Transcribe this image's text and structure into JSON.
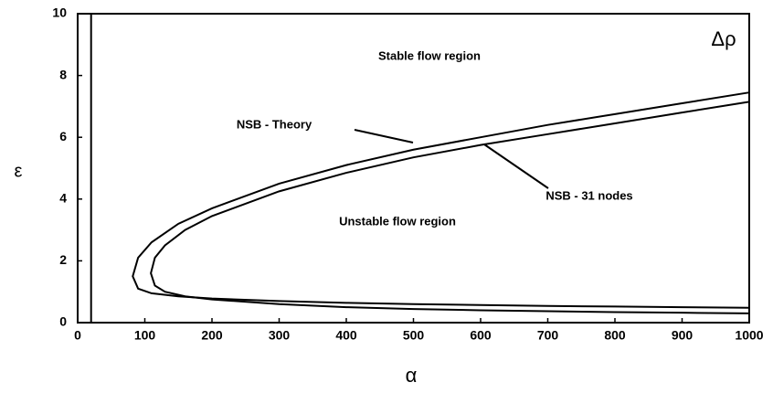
{
  "chart_data": {
    "type": "line",
    "xlabel": "α",
    "ylabel": "ε",
    "annotations": [
      "Stable flow region",
      "Unstable flow region",
      "Δρ"
    ],
    "xlim": [
      0,
      1000
    ],
    "xticks": [
      0,
      100,
      200,
      300,
      400,
      500,
      600,
      700,
      800,
      900,
      1000
    ],
    "ylim": [
      0,
      10
    ],
    "yticks": [
      0,
      2,
      4,
      6,
      8,
      10
    ],
    "series": [
      {
        "name": "NSB - Theory",
        "color": "#000000",
        "x": [
          1000,
          900,
          800,
          700,
          600,
          500,
          400,
          300,
          200,
          150,
          110,
          90,
          82,
          90,
          110,
          150,
          200,
          300,
          400,
          500,
          600,
          700,
          800,
          900,
          1000
        ],
        "values": [
          7.45,
          7.1,
          6.75,
          6.4,
          6.0,
          5.6,
          5.1,
          4.5,
          3.7,
          3.2,
          2.6,
          2.1,
          1.5,
          1.1,
          0.95,
          0.85,
          0.78,
          0.7,
          0.64,
          0.6,
          0.57,
          0.54,
          0.52,
          0.5,
          0.48
        ]
      },
      {
        "name": "NSB - 31 nodes",
        "color": "#000000",
        "x": [
          1000,
          900,
          800,
          700,
          600,
          500,
          400,
          300,
          200,
          160,
          130,
          115,
          109,
          115,
          130,
          160,
          200,
          300,
          400,
          500,
          600,
          700,
          800,
          900,
          1000
        ],
        "values": [
          7.15,
          6.8,
          6.45,
          6.1,
          5.75,
          5.35,
          4.85,
          4.25,
          3.45,
          3.0,
          2.5,
          2.1,
          1.6,
          1.2,
          1.0,
          0.85,
          0.75,
          0.6,
          0.5,
          0.44,
          0.4,
          0.37,
          0.34,
          0.32,
          0.3
        ]
      },
      {
        "color": "#000000",
        "x": [
          20,
          20
        ],
        "values": [
          0,
          10
        ]
      }
    ]
  }
}
